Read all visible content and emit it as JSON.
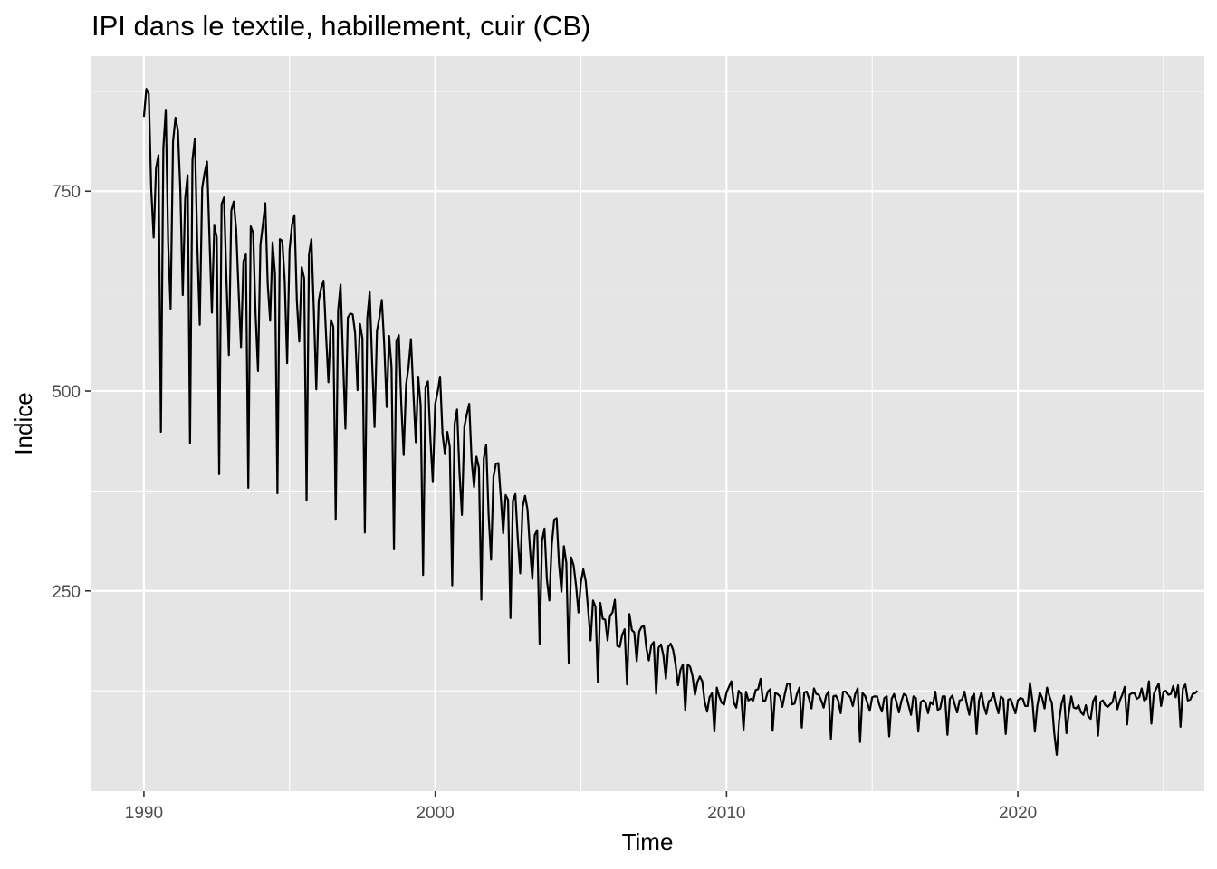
{
  "chart_data": {
    "type": "line",
    "title": "IPI dans le textile, habillement, cuir (CB)",
    "xlabel": "Time",
    "ylabel": "Indice",
    "xlim": [
      1988.2,
      2026.4
    ],
    "ylim": [
      -0.5,
      919
    ],
    "x_ticks": [
      1990,
      2000,
      2010,
      2020
    ],
    "x_tick_labels": [
      "1990",
      "2000",
      "2010",
      "2020"
    ],
    "y_ticks": [
      250,
      500,
      750
    ],
    "y_tick_labels": [
      "250",
      "500",
      "750"
    ],
    "grid": true,
    "legend": "none",
    "colors": {
      "panel": "#e5e5e5",
      "grid": "#ffffff",
      "line": "#000000",
      "tick": "#333333"
    },
    "series": [
      {
        "x_start": 1990.0,
        "x_step": 0.0833333,
        "values": [
          843,
          878,
          872,
          754,
          692,
          779,
          795,
          449,
          804,
          852,
          685,
          603,
          812,
          842,
          826,
          752,
          620,
          741,
          770,
          435,
          789,
          816,
          683,
          583,
          754,
          773,
          787,
          693,
          598,
          707,
          692,
          396,
          734,
          742,
          640,
          545,
          726,
          737,
          702,
          626,
          555,
          662,
          671,
          379,
          706,
          698,
          596,
          525,
          683,
          708,
          735,
          634,
          588,
          686,
          646,
          372,
          690,
          688,
          638,
          535,
          677,
          708,
          720,
          613,
          562,
          655,
          641,
          363,
          671,
          690,
          601,
          502,
          613,
          629,
          638,
          572,
          511,
          589,
          581,
          339,
          601,
          633,
          542,
          453,
          592,
          597,
          596,
          572,
          501,
          584,
          566,
          323,
          591,
          624,
          537,
          455,
          575,
          592,
          614,
          557,
          480,
          569,
          530,
          302,
          562,
          570,
          485,
          420,
          508,
          530,
          565,
          498,
          436,
          518,
          482,
          270,
          505,
          512,
          441,
          386,
          484,
          499,
          518,
          447,
          421,
          449,
          430,
          257,
          459,
          477,
          398,
          345,
          455,
          471,
          484,
          413,
          380,
          418,
          404,
          239,
          416,
          433,
          345,
          289,
          393,
          409,
          410,
          368,
          322,
          370,
          364,
          216,
          363,
          371,
          316,
          272,
          355,
          369,
          352,
          304,
          265,
          320,
          326,
          184,
          313,
          328,
          264,
          238,
          308,
          339,
          341,
          283,
          249,
          306,
          285,
          160,
          292,
          282,
          257,
          223,
          261,
          277,
          262,
          226,
          188,
          238,
          230,
          136,
          235,
          215,
          214,
          188,
          219,
          223,
          239,
          181,
          180,
          195,
          202,
          133,
          221,
          201,
          198,
          162,
          199,
          205,
          206,
          178,
          163,
          182,
          186,
          121,
          179,
          183,
          169,
          140,
          180,
          184,
          176,
          158,
          132,
          151,
          158,
          100,
          158,
          155,
          143,
          120,
          136,
          143,
          137,
          111,
          99,
          117,
          122,
          74,
          129,
          118,
          110,
          108,
          123,
          130,
          137,
          110,
          104,
          125,
          121,
          76,
          124,
          113,
          115,
          113,
          126,
          127,
          140,
          112,
          113,
          124,
          127,
          75,
          122,
          121,
          118,
          105,
          121,
          134,
          134,
          108,
          109,
          121,
          129,
          79,
          123,
          124,
          115,
          103,
          128,
          121,
          120,
          113,
          104,
          119,
          124,
          65,
          118,
          119,
          113,
          97,
          124,
          124,
          120,
          117,
          106,
          121,
          128,
          61,
          122,
          119,
          110,
          100,
          117,
          118,
          118,
          107,
          99,
          116,
          118,
          68,
          115,
          121,
          111,
          98,
          112,
          121,
          119,
          107,
          95,
          118,
          116,
          74,
          111,
          113,
          110,
          97,
          111,
          108,
          124,
          101,
          103,
          118,
          118,
          70,
          115,
          119,
          108,
          98,
          113,
          114,
          124,
          108,
          95,
          117,
          121,
          71,
          113,
          123,
          106,
          96,
          112,
          114,
          122,
          108,
          97,
          118,
          115,
          71,
          114,
          115,
          106,
          97,
          113,
          116,
          115,
          106,
          106,
          135,
          112,
          74,
          106,
          123,
          116,
          103,
          129,
          118,
          110,
          72,
          45,
          88,
          109,
          119,
          72,
          98,
          118,
          104,
          103,
          107,
          98,
          95,
          107,
          93,
          90,
          112,
          118,
          69,
          111,
          113,
          107,
          105,
          108,
          111,
          124,
          102,
          113,
          120,
          130,
          83,
          120,
          122,
          122,
          115,
          117,
          128,
          113,
          115,
          137,
          84,
          121,
          128,
          134,
          106,
          124,
          125,
          120,
          121,
          131,
          117,
          132,
          80,
          128,
          133,
          113,
          114,
          121,
          122,
          125
        ]
      }
    ]
  }
}
